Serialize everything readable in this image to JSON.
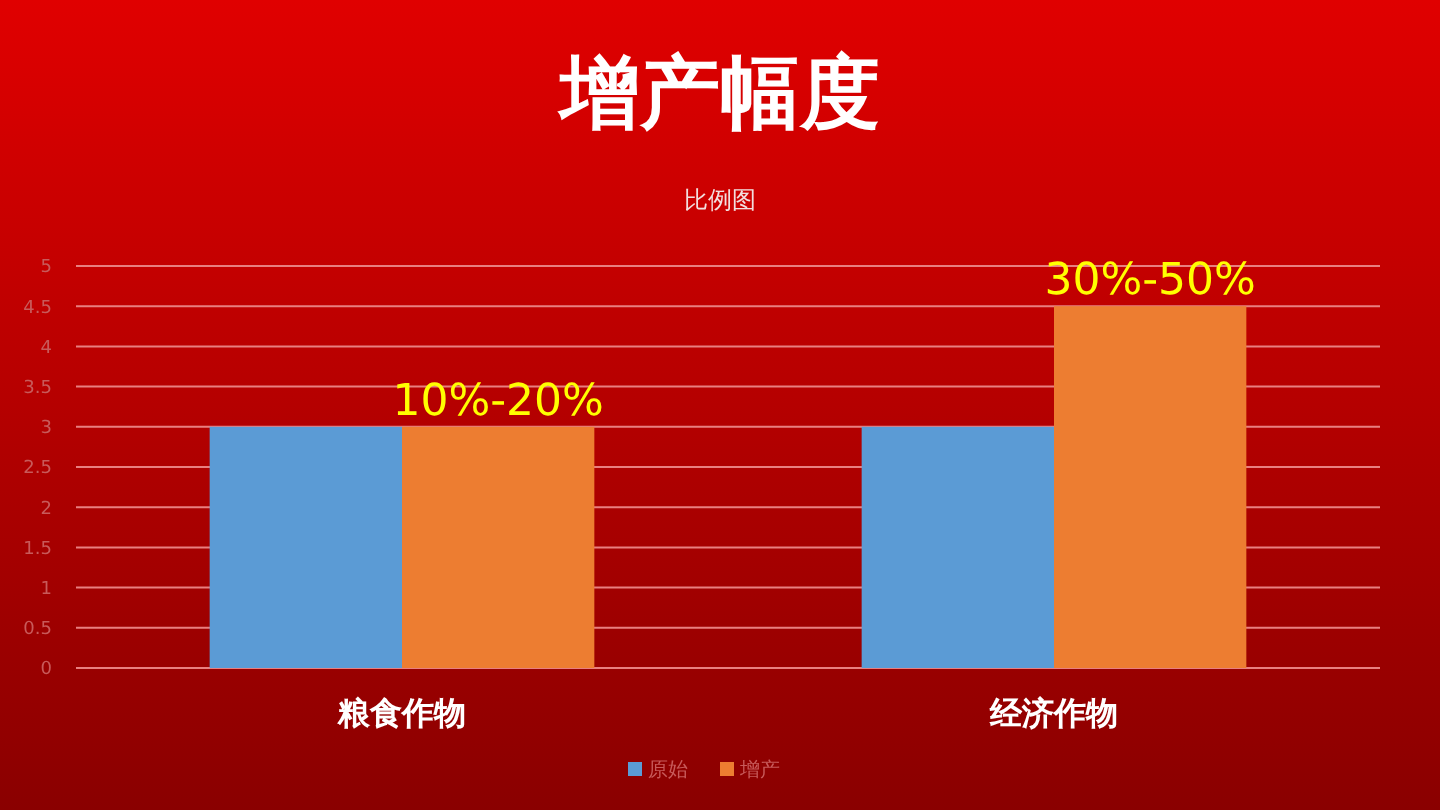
{
  "chart_data": {
    "type": "bar",
    "title": "增产幅度",
    "subtitle": "比例图",
    "categories": [
      "粮食作物",
      "经济作物"
    ],
    "series": [
      {
        "name": "原始",
        "color": "#5b9bd5",
        "values": [
          3,
          3
        ]
      },
      {
        "name": "增产",
        "color": "#ed7d31",
        "values": [
          3,
          4.5
        ]
      }
    ],
    "ylim": [
      0,
      5
    ],
    "yticks": [
      0,
      {
        "value": 0.5,
        "label": "0.5"
      },
      1,
      {
        "value": 1.5,
        "label": "1.5"
      },
      2,
      {
        "value": 2.5,
        "label": "2.5"
      },
      3,
      {
        "value": 3.5,
        "label": "3.5"
      },
      4,
      {
        "value": 4.5,
        "label": "4.5"
      },
      5
    ],
    "grid": "y",
    "legend": "bottom",
    "annotations": [
      {
        "text": "10%-20%",
        "x": "粮食作物",
        "y": 3
      },
      {
        "text": "30%-50%",
        "x": "经济作物",
        "y": 4.5
      }
    ]
  }
}
